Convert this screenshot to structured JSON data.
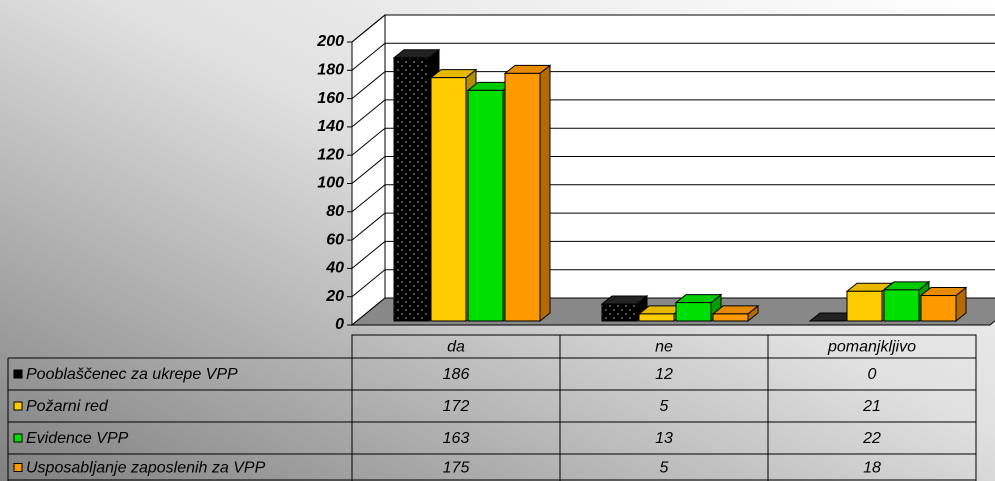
{
  "chart_data": {
    "type": "bar3d",
    "categories": [
      "da",
      "ne",
      "pomanjkljivo"
    ],
    "series": [
      {
        "name": "Pooblaščenec za ukrepe VPP",
        "color": "#000000",
        "values": [
          186,
          12,
          0
        ]
      },
      {
        "name": "Požarni red",
        "color": "#ffcc00",
        "values": [
          172,
          5,
          21
        ]
      },
      {
        "name": "Evidence VPP",
        "color": "#00e000",
        "values": [
          163,
          13,
          22
        ]
      },
      {
        "name": "Usposabljanje zaposlenih za VPP",
        "color": "#ff9900",
        "values": [
          175,
          5,
          18
        ]
      }
    ],
    "ylim": [
      0,
      200
    ],
    "yticks": [
      0,
      20,
      40,
      60,
      80,
      100,
      120,
      140,
      160,
      180,
      200
    ],
    "grid": true,
    "data_table": true
  }
}
